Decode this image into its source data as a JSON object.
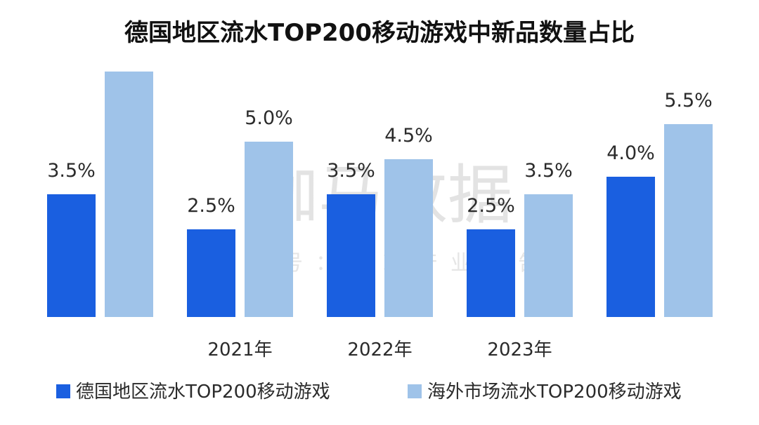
{
  "chart_data": {
    "type": "bar",
    "title": "德国地区流水TOP200移动游戏中新品数量占比",
    "categories": [
      "",
      "2021年",
      "2022年",
      "2023年",
      ""
    ],
    "series": [
      {
        "name": "德国地区流水TOP200移动游戏",
        "color": "#1a5fe0",
        "values": [
          3.5,
          2.5,
          3.5,
          2.5,
          4.0
        ],
        "labels": [
          "3.5%",
          "2.5%",
          "3.5%",
          "2.5%",
          "4.0%"
        ]
      },
      {
        "name": "海外市场流水TOP200移动游戏",
        "color": "#9fc3e9",
        "values": [
          7.0,
          5.0,
          4.5,
          3.5,
          5.5
        ],
        "labels": [
          "",
          "5.0%",
          "4.5%",
          "3.5%",
          "5.5%"
        ]
      }
    ],
    "ylim": [
      0,
      7.5
    ],
    "grid": false,
    "legend": "bottom"
  },
  "watermark": {
    "main": "伽马数据",
    "sub": "微信号：游戏产业报告"
  }
}
